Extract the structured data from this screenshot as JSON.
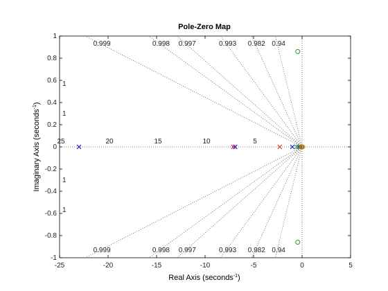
{
  "chart_data": {
    "type": "scatter",
    "title": "Pole-Zero Map",
    "xlabel": "Real Axis (seconds",
    "xlabel_sup": "-1",
    "ylabel": "Imaginary Axis (seconds",
    "ylabel_sup": "-1",
    "xlim": [
      -25,
      5
    ],
    "ylim": [
      -1,
      1
    ],
    "xticks": [
      -25,
      -20,
      -15,
      -10,
      -5,
      0,
      5
    ],
    "yticks": [
      -1,
      -0.8,
      -0.6,
      -0.4,
      -0.2,
      0,
      0.2,
      0.4,
      0.6,
      0.8,
      1
    ],
    "grid": true,
    "damping_grid": {
      "ratios": [
        0.999,
        0.998,
        0.997,
        0.993,
        0.982,
        0.94
      ],
      "ratio_labels": [
        "0.999",
        "0.998",
        "0.997",
        "0.993",
        "0.982",
        "0.94"
      ],
      "left_edge_labels": [
        "1",
        "1"
      ],
      "natural_freq_labels": [
        {
          "text": "25",
          "value": 25
        },
        {
          "text": "20",
          "value": 20
        },
        {
          "text": "15",
          "value": 15
        },
        {
          "text": "10",
          "value": 10
        },
        {
          "text": "5",
          "value": 5
        }
      ]
    },
    "series": [
      {
        "color": "#0000cc",
        "poles": [
          [
            -23.0,
            0
          ],
          [
            -6.9,
            0
          ],
          [
            -1.0,
            0
          ],
          [
            -0.35,
            0
          ]
        ],
        "zeros": []
      },
      {
        "color": "#d62728",
        "poles": [
          [
            -7.1,
            0
          ],
          [
            -2.3,
            0
          ],
          [
            -0.15,
            0
          ]
        ],
        "zeros": [
          [
            -0.05,
            0
          ]
        ]
      },
      {
        "color": "#1f9f1f",
        "poles": [
          [
            -0.55,
            0
          ]
        ],
        "zeros": [
          [
            -0.45,
            0.86
          ],
          [
            -0.45,
            -0.86
          ],
          [
            -0.1,
            0
          ]
        ]
      },
      {
        "color": "#e08a00",
        "poles": [],
        "zeros": [
          [
            0.05,
            0
          ]
        ]
      }
    ]
  }
}
